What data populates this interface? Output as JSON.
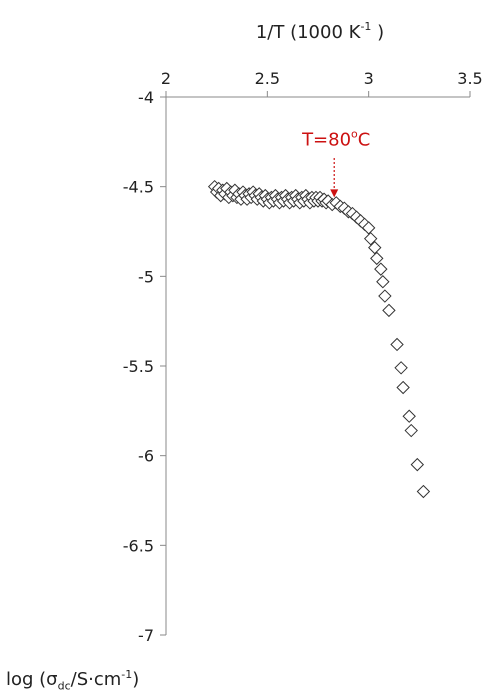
{
  "chart_data": {
    "type": "scatter",
    "title": "",
    "xlabel": "1/T (1000 K",
    "xlabel_sup": "-1",
    "xlabel_end": " )",
    "ylabel_pre": "log (σ",
    "ylabel_sub": "dc",
    "ylabel_mid": "/S·cm",
    "ylabel_sup": "-1",
    "ylabel_end": ")",
    "x_axis_position": "top",
    "xlim": [
      2,
      3.5
    ],
    "ylim": [
      -7,
      -4
    ],
    "xticks": [
      "2",
      "2.5",
      "3",
      "3.5"
    ],
    "yticks": [
      "-4",
      "-4.5",
      "-5",
      "-5.5",
      "-6",
      "-6.5",
      "-7"
    ],
    "grid": false,
    "marker": "open-diamond",
    "annotation": {
      "text_pre": "T=80",
      "text_sup": "o",
      "text_post": "C",
      "x": 2.83,
      "y_text": -4.27,
      "arrow_from_y": -4.34,
      "arrow_to_y": -4.56,
      "color": "#cc1111"
    },
    "series": [
      {
        "points": [
          [
            2.24,
            -4.5
          ],
          [
            2.25,
            -4.53
          ],
          [
            2.26,
            -4.51
          ],
          [
            2.27,
            -4.55
          ],
          [
            2.28,
            -4.52
          ],
          [
            2.29,
            -4.54
          ],
          [
            2.3,
            -4.51
          ],
          [
            2.31,
            -4.56
          ],
          [
            2.32,
            -4.53
          ],
          [
            2.33,
            -4.55
          ],
          [
            2.34,
            -4.52
          ],
          [
            2.35,
            -4.56
          ],
          [
            2.36,
            -4.54
          ],
          [
            2.37,
            -4.57
          ],
          [
            2.38,
            -4.53
          ],
          [
            2.39,
            -4.55
          ],
          [
            2.4,
            -4.57
          ],
          [
            2.41,
            -4.54
          ],
          [
            2.42,
            -4.56
          ],
          [
            2.43,
            -4.53
          ],
          [
            2.44,
            -4.55
          ],
          [
            2.45,
            -4.57
          ],
          [
            2.46,
            -4.54
          ],
          [
            2.47,
            -4.56
          ],
          [
            2.48,
            -4.58
          ],
          [
            2.49,
            -4.55
          ],
          [
            2.5,
            -4.57
          ],
          [
            2.51,
            -4.59
          ],
          [
            2.52,
            -4.56
          ],
          [
            2.53,
            -4.58
          ],
          [
            2.54,
            -4.55
          ],
          [
            2.55,
            -4.57
          ],
          [
            2.56,
            -4.59
          ],
          [
            2.57,
            -4.56
          ],
          [
            2.58,
            -4.58
          ],
          [
            2.59,
            -4.55
          ],
          [
            2.6,
            -4.57
          ],
          [
            2.61,
            -4.59
          ],
          [
            2.62,
            -4.56
          ],
          [
            2.63,
            -4.58
          ],
          [
            2.64,
            -4.55
          ],
          [
            2.65,
            -4.57
          ],
          [
            2.66,
            -4.59
          ],
          [
            2.67,
            -4.56
          ],
          [
            2.68,
            -4.58
          ],
          [
            2.69,
            -4.55
          ],
          [
            2.7,
            -4.57
          ],
          [
            2.71,
            -4.59
          ],
          [
            2.72,
            -4.56
          ],
          [
            2.73,
            -4.58
          ],
          [
            2.74,
            -4.56
          ],
          [
            2.75,
            -4.58
          ],
          [
            2.76,
            -4.56
          ],
          [
            2.77,
            -4.58
          ],
          [
            2.78,
            -4.57
          ],
          [
            2.79,
            -4.59
          ],
          [
            2.8,
            -4.58
          ],
          [
            2.82,
            -4.6
          ],
          [
            2.84,
            -4.59
          ],
          [
            2.86,
            -4.61
          ],
          [
            2.88,
            -4.62
          ],
          [
            2.9,
            -4.64
          ],
          [
            2.92,
            -4.65
          ],
          [
            2.94,
            -4.67
          ],
          [
            2.96,
            -4.69
          ],
          [
            2.98,
            -4.71
          ],
          [
            3.0,
            -4.73
          ],
          [
            3.01,
            -4.79
          ],
          [
            3.03,
            -4.84
          ],
          [
            3.04,
            -4.9
          ],
          [
            3.06,
            -4.96
          ],
          [
            3.07,
            -5.03
          ],
          [
            3.08,
            -5.11
          ],
          [
            3.1,
            -5.19
          ],
          [
            3.14,
            -5.38
          ],
          [
            3.16,
            -5.51
          ],
          [
            3.17,
            -5.62
          ],
          [
            3.2,
            -5.78
          ],
          [
            3.21,
            -5.86
          ],
          [
            3.24,
            -6.05
          ],
          [
            3.27,
            -6.2
          ]
        ]
      }
    ]
  }
}
